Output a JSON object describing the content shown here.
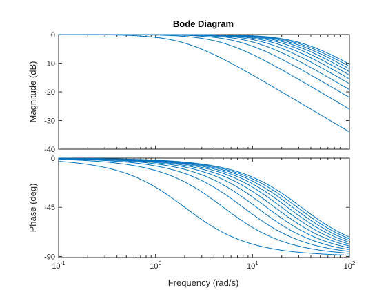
{
  "chart_data": {
    "type": "line",
    "title": "Bode Diagram",
    "xlabel": "Frequency  (rad/s)",
    "x_scale": "log",
    "xlim": [
      0.1,
      100
    ],
    "x_ticks": [
      {
        "value": 0.1,
        "base": "10",
        "exp": "-1"
      },
      {
        "value": 1,
        "base": "10",
        "exp": "0"
      },
      {
        "value": 10,
        "base": "10",
        "exp": "1"
      },
      {
        "value": 100,
        "base": "10",
        "exp": "2"
      }
    ],
    "line_color": "#0072bd",
    "description": "First-order low-pass systems 1/(s/wc + 1)",
    "corner_frequencies": [
      2,
      5,
      8,
      11,
      14,
      17,
      20,
      23,
      26,
      29,
      32
    ],
    "panels": [
      {
        "key": "magnitude",
        "ylabel": "Magnitude (dB)",
        "ylim": [
          -40,
          0
        ],
        "y_ticks": [
          0,
          -10,
          -20,
          -30,
          -40
        ],
        "y_tick_labels": [
          "0",
          "-10",
          "-20",
          "-30",
          "-40"
        ]
      },
      {
        "key": "phase",
        "ylabel": "Phase (deg)",
        "ylim": [
          -91,
          0
        ],
        "y_ticks": [
          0,
          -45,
          -90
        ],
        "y_tick_labels": [
          "0",
          "-45",
          "-90"
        ]
      }
    ]
  }
}
